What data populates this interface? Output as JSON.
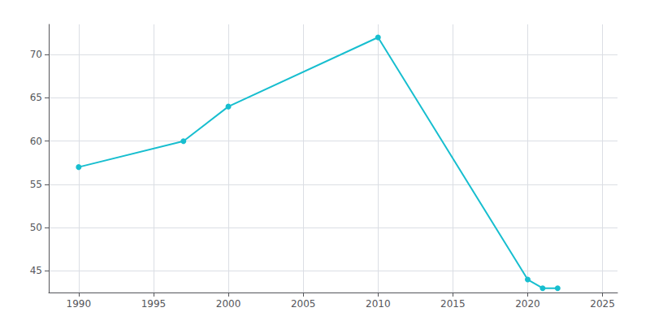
{
  "chart_data": {
    "type": "line",
    "x": [
      1990,
      1997,
      2000,
      2010,
      2020,
      2021,
      2022
    ],
    "values": [
      57,
      60,
      64,
      72,
      44,
      43,
      43
    ],
    "color": "#17BECF",
    "marker": "circle",
    "xlim": [
      1988,
      2026
    ],
    "ylim": [
      42.5,
      73.5
    ],
    "xticks": [
      1990,
      1995,
      2000,
      2005,
      2010,
      2015,
      2020,
      2025
    ],
    "yticks": [
      45,
      50,
      55,
      60,
      65,
      70
    ],
    "grid": true
  }
}
